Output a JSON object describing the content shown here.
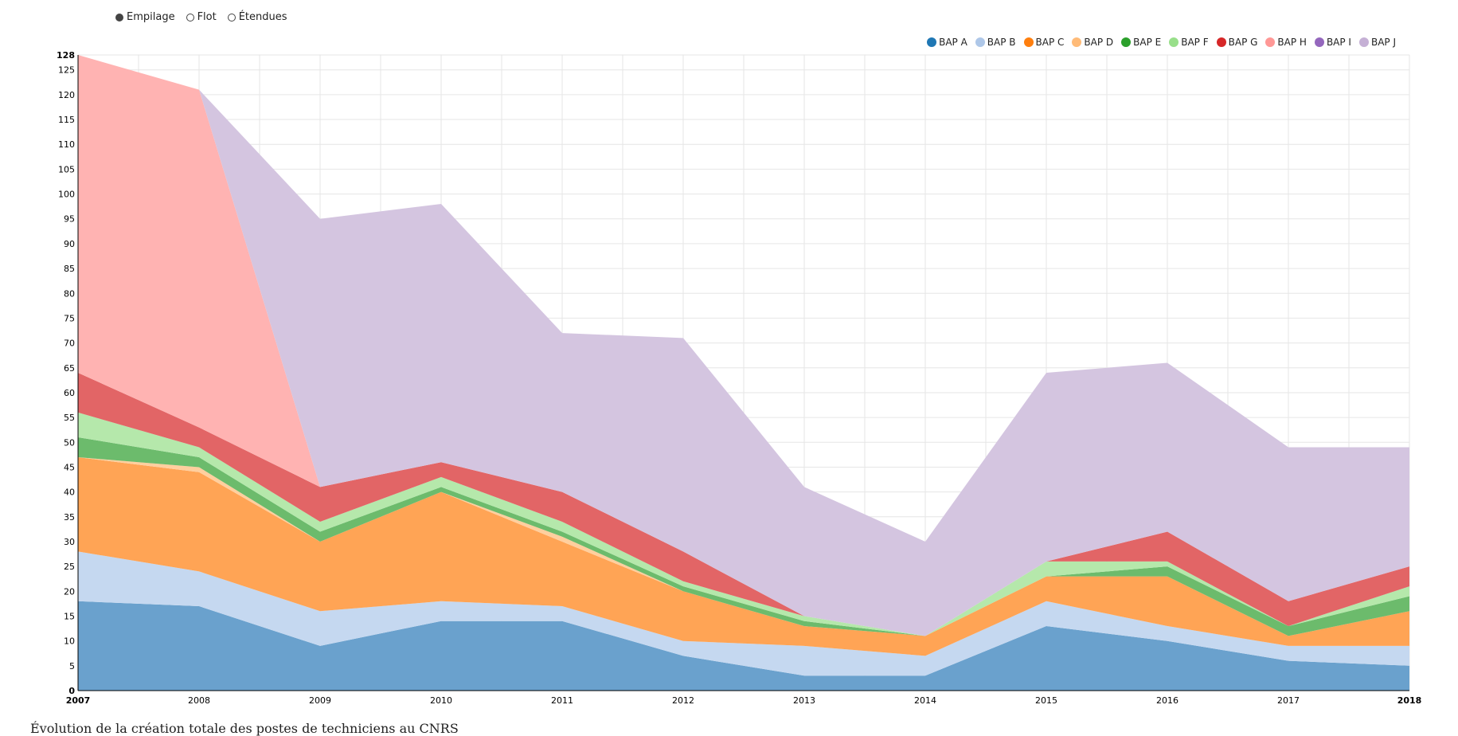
{
  "controls": {
    "options": [
      "Empilage",
      "Flot",
      "Étendues"
    ],
    "selected": 0
  },
  "caption": "Évolution de la création totale des postes de techniciens au CNRS",
  "chart_data": {
    "type": "area",
    "stacked": true,
    "x": [
      2007,
      2008,
      2009,
      2010,
      2011,
      2012,
      2013,
      2014,
      2015,
      2016,
      2017,
      2018
    ],
    "ylim": [
      0,
      128
    ],
    "yticks": [
      0,
      5,
      10,
      15,
      20,
      25,
      30,
      35,
      40,
      45,
      50,
      55,
      60,
      65,
      70,
      75,
      80,
      85,
      90,
      95,
      100,
      105,
      110,
      115,
      120,
      125,
      128
    ],
    "grid": true,
    "legend_position": "top-right",
    "series": [
      {
        "name": "BAP A",
        "color": "#1f77b4",
        "fill": "#6aa1cd",
        "values": [
          18,
          17,
          9,
          14,
          14,
          7,
          3,
          3,
          13,
          10,
          6,
          5
        ]
      },
      {
        "name": "BAP B",
        "color": "#aec7e8",
        "fill": "#c5d8f0",
        "values": [
          10,
          7,
          7,
          4,
          3,
          3,
          6,
          4,
          5,
          3,
          3,
          4
        ]
      },
      {
        "name": "BAP C",
        "color": "#ff7f0e",
        "fill": "#ffa455",
        "values": [
          19,
          20,
          14,
          22,
          13,
          10,
          4,
          4,
          5,
          10,
          2,
          7
        ]
      },
      {
        "name": "BAP D",
        "color": "#ffbb78",
        "fill": "#ffcf9e",
        "values": [
          0,
          1,
          0,
          0,
          1,
          0,
          0,
          0,
          0,
          0,
          0,
          0
        ]
      },
      {
        "name": "BAP E",
        "color": "#2ca02c",
        "fill": "#6cbb6c",
        "values": [
          4,
          2,
          2,
          1,
          1,
          1,
          1,
          0,
          0,
          2,
          2,
          3
        ]
      },
      {
        "name": "BAP F",
        "color": "#98df8a",
        "fill": "#b5e8ab",
        "values": [
          5,
          2,
          2,
          2,
          2,
          1,
          1,
          0,
          3,
          1,
          0,
          2
        ]
      },
      {
        "name": "BAP G",
        "color": "#d62728",
        "fill": "#e26566",
        "values": [
          8,
          4,
          7,
          3,
          6,
          6,
          0,
          0,
          0,
          6,
          5,
          4
        ]
      },
      {
        "name": "BAP H",
        "color": "#ff9896",
        "fill": "#ffb3b2",
        "values": [
          64,
          68,
          0,
          0,
          0,
          0,
          0,
          0,
          0,
          0,
          0,
          0
        ]
      },
      {
        "name": "BAP I",
        "color": "#9467bd",
        "fill": "#b294cf",
        "values": [
          0,
          0,
          0,
          0,
          0,
          0,
          0,
          0,
          0,
          0,
          0,
          0
        ]
      },
      {
        "name": "BAP J",
        "color": "#c5b0d5",
        "fill": "#d4c5e0",
        "values": [
          0,
          0,
          54,
          52,
          32,
          43,
          26,
          19,
          38,
          34,
          31,
          24
        ]
      }
    ]
  }
}
